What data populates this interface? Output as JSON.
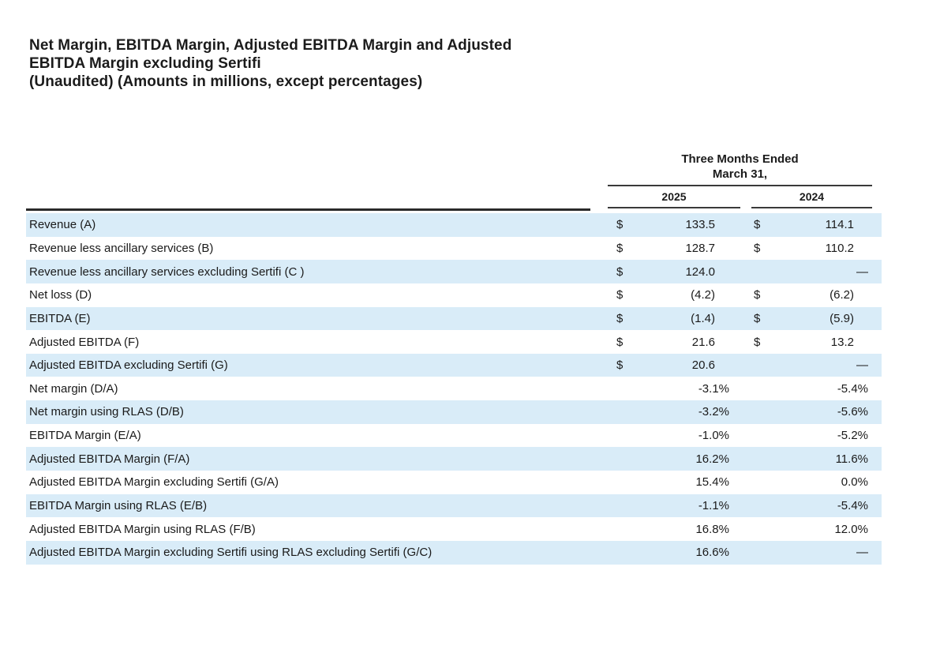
{
  "page": {
    "title_lines": [
      "Net Margin, EBITDA Margin, Adjusted EBITDA Margin and Adjusted",
      "EBITDA Margin excluding Sertifi",
      "(Unaudited) (Amounts in millions, except percentages)"
    ]
  },
  "appearance": {
    "stripe_color": "#d9ecf8",
    "text_color": "#1a1a1a",
    "rule_color": "#2a2a2a",
    "background": "#ffffff"
  },
  "table": {
    "period": {
      "line1": "Three Months Ended",
      "line2": "March 31,"
    },
    "columns": [
      "2025",
      "2024"
    ],
    "currency_symbol": "$",
    "rows": [
      {
        "label": "Revenue (A)",
        "type": "currency",
        "d2025": "$",
        "v2025": "133.5",
        "d2024": "$",
        "v2024": "114.1"
      },
      {
        "label": "Revenue less ancillary services (B)",
        "type": "currency",
        "d2025": "$",
        "v2025": "128.7",
        "d2024": "$",
        "v2024": "110.2"
      },
      {
        "label": "Revenue less ancillary services excluding Sertifi (C )",
        "type": "currency",
        "d2025": "$",
        "v2025": "124.0",
        "d2024": "",
        "v2024": "—"
      },
      {
        "label": "Net loss (D)",
        "type": "currency",
        "d2025": "$",
        "v2025": "(4.2)",
        "d2024": "$",
        "v2024": "(6.2)"
      },
      {
        "label": "EBITDA (E)",
        "type": "currency",
        "d2025": "$",
        "v2025": "(1.4)",
        "d2024": "$",
        "v2024": "(5.9)"
      },
      {
        "label": "Adjusted EBITDA (F)",
        "type": "currency",
        "d2025": "$",
        "v2025": "21.6",
        "d2024": "$",
        "v2024": "13.2"
      },
      {
        "label": "Adjusted EBITDA excluding Sertifi (G)",
        "type": "currency",
        "d2025": "$",
        "v2025": "20.6",
        "d2024": "",
        "v2024": "—"
      },
      {
        "label": "Net margin (D/A)",
        "type": "percent",
        "d2025": "",
        "v2025": "-3.1%",
        "d2024": "",
        "v2024": "-5.4%"
      },
      {
        "label": "Net margin using RLAS (D/B)",
        "type": "percent",
        "d2025": "",
        "v2025": "-3.2%",
        "d2024": "",
        "v2024": "-5.6%"
      },
      {
        "label": "EBITDA Margin (E/A)",
        "type": "percent",
        "d2025": "",
        "v2025": "-1.0%",
        "d2024": "",
        "v2024": "-5.2%"
      },
      {
        "label": "Adjusted EBITDA Margin (F/A)",
        "type": "percent",
        "d2025": "",
        "v2025": "16.2%",
        "d2024": "",
        "v2024": "11.6%"
      },
      {
        "label": "Adjusted EBITDA Margin excluding Sertifi (G/A)",
        "type": "percent",
        "d2025": "",
        "v2025": "15.4%",
        "d2024": "",
        "v2024": "0.0%"
      },
      {
        "label": "EBITDA Margin using RLAS (E/B)",
        "type": "percent",
        "d2025": "",
        "v2025": "-1.1%",
        "d2024": "",
        "v2024": "-5.4%"
      },
      {
        "label": "Adjusted EBITDA Margin using RLAS (F/B)",
        "type": "percent",
        "d2025": "",
        "v2025": "16.8%",
        "d2024": "",
        "v2024": "12.0%"
      },
      {
        "label": "Adjusted EBITDA Margin excluding Sertifi using RLAS excluding Sertifi (G/C)",
        "type": "percent",
        "d2025": "",
        "v2025": "16.6%",
        "d2024": "",
        "v2024": "—"
      }
    ]
  }
}
